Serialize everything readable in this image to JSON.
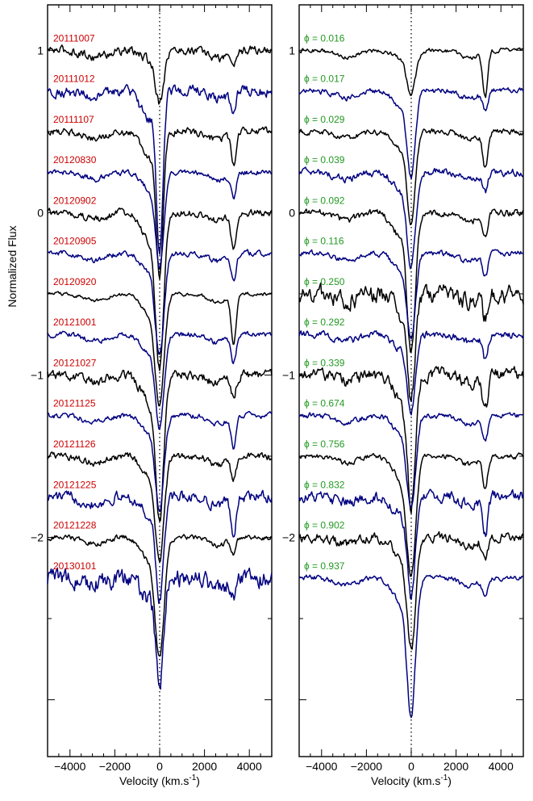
{
  "chart_data": [
    {
      "type": "line",
      "panel": "left",
      "xlabel": "Velocity (km.s",
      "xlabel_sup": "-1",
      "xlabel_close": ")",
      "ylabel": "Normalized Flux",
      "xlim": [
        -5000,
        5000
      ],
      "ylim": [
        -3.35,
        1.28
      ],
      "xticks": [
        -4000,
        -2000,
        0,
        2000,
        4000
      ],
      "yticks": [
        1,
        0,
        -1,
        -2
      ],
      "zero_line": true,
      "label_color": "#cc0000",
      "series_colors": [
        "#000000",
        "#000080"
      ],
      "spectra": [
        {
          "label": "20111007",
          "offset": 1.0,
          "depth": 0.3,
          "width": 180,
          "feature_depth": 0.08,
          "noise": 0.025
        },
        {
          "label": "20111012",
          "offset": 0.75,
          "depth": 0.95,
          "width": 140,
          "feature_depth": 0.12,
          "noise": 0.03
        },
        {
          "label": "20111107",
          "offset": 0.5,
          "depth": 0.85,
          "width": 150,
          "feature_depth": 0.18,
          "noise": 0.02
        },
        {
          "label": "20120830",
          "offset": 0.25,
          "depth": 0.55,
          "width": 180,
          "feature_depth": 0.16,
          "noise": 0.015
        },
        {
          "label": "20120902",
          "offset": 0.0,
          "depth": 0.9,
          "width": 180,
          "feature_depth": 0.22,
          "noise": 0.02
        },
        {
          "label": "20120905",
          "offset": -0.25,
          "depth": 0.6,
          "width": 190,
          "feature_depth": 0.15,
          "noise": 0.015
        },
        {
          "label": "20120920",
          "offset": -0.5,
          "depth": 0.65,
          "width": 200,
          "feature_depth": 0.3,
          "noise": 0.01
        },
        {
          "label": "20121001",
          "offset": -0.75,
          "depth": 0.55,
          "width": 190,
          "feature_depth": 0.16,
          "noise": 0.015
        },
        {
          "label": "20121027",
          "offset": -1.0,
          "depth": 0.85,
          "width": 180,
          "feature_depth": 0.12,
          "noise": 0.025
        },
        {
          "label": "20121125",
          "offset": -1.25,
          "depth": 0.55,
          "width": 190,
          "feature_depth": 0.2,
          "noise": 0.015
        },
        {
          "label": "20121126",
          "offset": -1.5,
          "depth": 0.6,
          "width": 200,
          "feature_depth": 0.14,
          "noise": 0.02
        },
        {
          "label": "20121225",
          "offset": -1.75,
          "depth": 0.6,
          "width": 170,
          "feature_depth": 0.22,
          "noise": 0.03
        },
        {
          "label": "20121228",
          "offset": -2.0,
          "depth": 0.7,
          "width": 200,
          "feature_depth": 0.1,
          "noise": 0.015
        },
        {
          "label": "20130101",
          "offset": -2.25,
          "depth": 0.65,
          "width": 160,
          "feature_depth": 0.08,
          "noise": 0.05
        }
      ]
    },
    {
      "type": "line",
      "panel": "right",
      "xlabel": "Velocity (km.s",
      "xlabel_sup": "-1",
      "xlabel_close": ")",
      "xlim": [
        -5000,
        5000
      ],
      "ylim": [
        -3.35,
        1.28
      ],
      "xticks": [
        -4000,
        -2000,
        0,
        2000,
        4000
      ],
      "yticks": [
        1,
        0,
        -1,
        -2
      ],
      "zero_line": true,
      "label_color": "#229922",
      "series_colors": [
        "#000000",
        "#000080"
      ],
      "phase_symbol": "ϕ",
      "spectra": [
        {
          "label": "0.016",
          "offset": 1.0,
          "depth": 0.25,
          "width": 200,
          "feature_depth": 0.28,
          "noise": 0.012
        },
        {
          "label": "0.017",
          "offset": 0.75,
          "depth": 0.5,
          "width": 180,
          "feature_depth": 0.12,
          "noise": 0.015
        },
        {
          "label": "0.029",
          "offset": 0.5,
          "depth": 0.55,
          "width": 180,
          "feature_depth": 0.22,
          "noise": 0.015
        },
        {
          "label": "0.039",
          "offset": 0.25,
          "depth": 0.55,
          "width": 190,
          "feature_depth": 0.12,
          "noise": 0.02
        },
        {
          "label": "0.092",
          "offset": 0.0,
          "depth": 0.8,
          "width": 180,
          "feature_depth": 0.15,
          "noise": 0.02
        },
        {
          "label": "0.116",
          "offset": -0.25,
          "depth": 0.5,
          "width": 190,
          "feature_depth": 0.14,
          "noise": 0.015
        },
        {
          "label": "0.250",
          "offset": -0.5,
          "depth": 0.6,
          "width": 170,
          "feature_depth": 0.15,
          "noise": 0.05
        },
        {
          "label": "0.292",
          "offset": -0.75,
          "depth": 0.45,
          "width": 180,
          "feature_depth": 0.15,
          "noise": 0.02
        },
        {
          "label": "0.339",
          "offset": -1.0,
          "depth": 0.75,
          "width": 180,
          "feature_depth": 0.22,
          "noise": 0.035
        },
        {
          "label": "0.674",
          "offset": -1.25,
          "depth": 0.55,
          "width": 190,
          "feature_depth": 0.15,
          "noise": 0.015
        },
        {
          "label": "0.756",
          "offset": -1.5,
          "depth": 0.7,
          "width": 200,
          "feature_depth": 0.2,
          "noise": 0.015
        },
        {
          "label": "0.832",
          "offset": -1.75,
          "depth": 0.6,
          "width": 170,
          "feature_depth": 0.22,
          "noise": 0.03
        },
        {
          "label": "0.902",
          "offset": -2.0,
          "depth": 0.65,
          "width": 190,
          "feature_depth": 0.15,
          "noise": 0.025
        },
        {
          "label": "0.937",
          "offset": -2.25,
          "depth": 0.8,
          "width": 190,
          "feature_depth": 0.12,
          "noise": 0.015
        }
      ]
    }
  ]
}
